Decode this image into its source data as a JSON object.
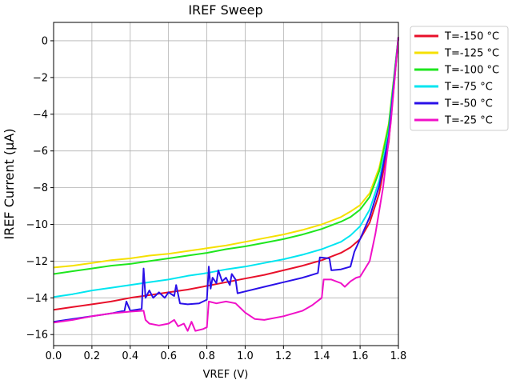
{
  "chart_data": {
    "type": "line",
    "title": "IREF Sweep",
    "xlabel": "VREF (V)",
    "ylabel": "IREF Current (µA)",
    "xlim": [
      0.0,
      1.8
    ],
    "ylim": [
      -16.6,
      1.0
    ],
    "xticks": [
      "0.0",
      "0.2",
      "0.4",
      "0.6",
      "0.8",
      "1.0",
      "1.2",
      "1.4",
      "1.6",
      "1.8"
    ],
    "yticks": [
      "0",
      "−2",
      "−4",
      "−6",
      "−8",
      "−10",
      "−12",
      "−14",
      "−16"
    ],
    "grid": true,
    "legend_position": "outside-top-right",
    "series": [
      {
        "name": "T=-150 °C",
        "color": "#e8102a",
        "points": [
          [
            0.0,
            -14.65
          ],
          [
            0.1,
            -14.5
          ],
          [
            0.2,
            -14.35
          ],
          [
            0.3,
            -14.2
          ],
          [
            0.4,
            -14.0
          ],
          [
            0.5,
            -13.85
          ],
          [
            0.6,
            -13.7
          ],
          [
            0.7,
            -13.55
          ],
          [
            0.8,
            -13.35
          ],
          [
            0.9,
            -13.15
          ],
          [
            1.0,
            -12.95
          ],
          [
            1.1,
            -12.75
          ],
          [
            1.2,
            -12.5
          ],
          [
            1.3,
            -12.25
          ],
          [
            1.4,
            -11.95
          ],
          [
            1.5,
            -11.55
          ],
          [
            1.55,
            -11.25
          ],
          [
            1.6,
            -10.8
          ],
          [
            1.65,
            -9.9
          ],
          [
            1.7,
            -8.3
          ],
          [
            1.75,
            -5.5
          ],
          [
            1.8,
            0.2
          ]
        ]
      },
      {
        "name": "T=-125 °C",
        "color": "#f5e000",
        "points": [
          [
            0.0,
            -12.35
          ],
          [
            0.1,
            -12.25
          ],
          [
            0.2,
            -12.1
          ],
          [
            0.3,
            -11.95
          ],
          [
            0.4,
            -11.85
          ],
          [
            0.5,
            -11.7
          ],
          [
            0.6,
            -11.6
          ],
          [
            0.7,
            -11.45
          ],
          [
            0.8,
            -11.3
          ],
          [
            0.9,
            -11.15
          ],
          [
            1.0,
            -10.95
          ],
          [
            1.1,
            -10.75
          ],
          [
            1.2,
            -10.55
          ],
          [
            1.3,
            -10.3
          ],
          [
            1.4,
            -10.0
          ],
          [
            1.5,
            -9.6
          ],
          [
            1.55,
            -9.3
          ],
          [
            1.6,
            -8.95
          ],
          [
            1.65,
            -8.3
          ],
          [
            1.7,
            -6.9
          ],
          [
            1.75,
            -4.5
          ],
          [
            1.8,
            0.2
          ]
        ]
      },
      {
        "name": "T=-100 °C",
        "color": "#1ee61e",
        "points": [
          [
            0.0,
            -12.7
          ],
          [
            0.1,
            -12.55
          ],
          [
            0.2,
            -12.4
          ],
          [
            0.3,
            -12.25
          ],
          [
            0.4,
            -12.15
          ],
          [
            0.5,
            -12.0
          ],
          [
            0.6,
            -11.85
          ],
          [
            0.7,
            -11.7
          ],
          [
            0.8,
            -11.55
          ],
          [
            0.9,
            -11.35
          ],
          [
            1.0,
            -11.2
          ],
          [
            1.1,
            -11.0
          ],
          [
            1.2,
            -10.8
          ],
          [
            1.3,
            -10.55
          ],
          [
            1.4,
            -10.25
          ],
          [
            1.5,
            -9.85
          ],
          [
            1.55,
            -9.6
          ],
          [
            1.6,
            -9.2
          ],
          [
            1.65,
            -8.5
          ],
          [
            1.7,
            -7.1
          ],
          [
            1.75,
            -4.6
          ],
          [
            1.8,
            0.2
          ]
        ]
      },
      {
        "name": "T=-75 °C",
        "color": "#00e5f0",
        "points": [
          [
            0.0,
            -13.95
          ],
          [
            0.1,
            -13.8
          ],
          [
            0.2,
            -13.6
          ],
          [
            0.3,
            -13.45
          ],
          [
            0.4,
            -13.3
          ],
          [
            0.5,
            -13.15
          ],
          [
            0.6,
            -13.0
          ],
          [
            0.7,
            -12.8
          ],
          [
            0.8,
            -12.65
          ],
          [
            0.9,
            -12.45
          ],
          [
            1.0,
            -12.3
          ],
          [
            1.1,
            -12.1
          ],
          [
            1.2,
            -11.9
          ],
          [
            1.3,
            -11.65
          ],
          [
            1.4,
            -11.35
          ],
          [
            1.5,
            -10.95
          ],
          [
            1.55,
            -10.6
          ],
          [
            1.6,
            -10.1
          ],
          [
            1.65,
            -9.2
          ],
          [
            1.7,
            -7.6
          ],
          [
            1.75,
            -5.0
          ],
          [
            1.8,
            0.2
          ]
        ]
      },
      {
        "name": "T=-50 °C",
        "color": "#2a10e8",
        "points": [
          [
            0.0,
            -15.3
          ],
          [
            0.1,
            -15.15
          ],
          [
            0.2,
            -15.0
          ],
          [
            0.3,
            -14.85
          ],
          [
            0.37,
            -14.7
          ],
          [
            0.38,
            -14.2
          ],
          [
            0.4,
            -14.7
          ],
          [
            0.46,
            -14.6
          ],
          [
            0.47,
            -12.4
          ],
          [
            0.48,
            -14.0
          ],
          [
            0.5,
            -13.6
          ],
          [
            0.52,
            -14.0
          ],
          [
            0.55,
            -13.7
          ],
          [
            0.58,
            -14.0
          ],
          [
            0.6,
            -13.7
          ],
          [
            0.63,
            -13.9
          ],
          [
            0.64,
            -13.3
          ],
          [
            0.66,
            -14.3
          ],
          [
            0.7,
            -14.35
          ],
          [
            0.76,
            -14.3
          ],
          [
            0.8,
            -14.1
          ],
          [
            0.81,
            -12.3
          ],
          [
            0.82,
            -13.5
          ],
          [
            0.83,
            -12.9
          ],
          [
            0.85,
            -13.2
          ],
          [
            0.86,
            -12.5
          ],
          [
            0.88,
            -13.1
          ],
          [
            0.9,
            -12.9
          ],
          [
            0.92,
            -13.3
          ],
          [
            0.93,
            -12.7
          ],
          [
            0.95,
            -13.0
          ],
          [
            0.96,
            -13.75
          ],
          [
            1.0,
            -13.65
          ],
          [
            1.1,
            -13.4
          ],
          [
            1.2,
            -13.15
          ],
          [
            1.3,
            -12.9
          ],
          [
            1.38,
            -12.65
          ],
          [
            1.39,
            -11.8
          ],
          [
            1.44,
            -11.85
          ],
          [
            1.45,
            -12.5
          ],
          [
            1.5,
            -12.45
          ],
          [
            1.55,
            -12.3
          ],
          [
            1.57,
            -11.5
          ],
          [
            1.6,
            -10.8
          ],
          [
            1.65,
            -9.6
          ],
          [
            1.7,
            -7.9
          ],
          [
            1.75,
            -5.2
          ],
          [
            1.8,
            0.2
          ]
        ]
      },
      {
        "name": "T=-25 °C",
        "color": "#f010c8",
        "points": [
          [
            0.0,
            -15.35
          ],
          [
            0.1,
            -15.2
          ],
          [
            0.2,
            -15.0
          ],
          [
            0.3,
            -14.85
          ],
          [
            0.4,
            -14.75
          ],
          [
            0.47,
            -14.7
          ],
          [
            0.48,
            -15.2
          ],
          [
            0.5,
            -15.4
          ],
          [
            0.55,
            -15.5
          ],
          [
            0.6,
            -15.4
          ],
          [
            0.63,
            -15.2
          ],
          [
            0.65,
            -15.55
          ],
          [
            0.68,
            -15.4
          ],
          [
            0.7,
            -15.8
          ],
          [
            0.72,
            -15.3
          ],
          [
            0.74,
            -15.8
          ],
          [
            0.78,
            -15.7
          ],
          [
            0.8,
            -15.6
          ],
          [
            0.81,
            -14.2
          ],
          [
            0.85,
            -14.3
          ],
          [
            0.9,
            -14.2
          ],
          [
            0.95,
            -14.3
          ],
          [
            1.0,
            -14.8
          ],
          [
            1.05,
            -15.15
          ],
          [
            1.1,
            -15.2
          ],
          [
            1.2,
            -15.0
          ],
          [
            1.3,
            -14.7
          ],
          [
            1.35,
            -14.4
          ],
          [
            1.4,
            -14.0
          ],
          [
            1.41,
            -13.0
          ],
          [
            1.45,
            -13.0
          ],
          [
            1.5,
            -13.2
          ],
          [
            1.52,
            -13.4
          ],
          [
            1.55,
            -13.1
          ],
          [
            1.58,
            -12.9
          ],
          [
            1.6,
            -12.85
          ],
          [
            1.65,
            -12.0
          ],
          [
            1.68,
            -10.5
          ],
          [
            1.72,
            -8.0
          ],
          [
            1.76,
            -4.5
          ],
          [
            1.8,
            0.2
          ]
        ]
      }
    ]
  }
}
